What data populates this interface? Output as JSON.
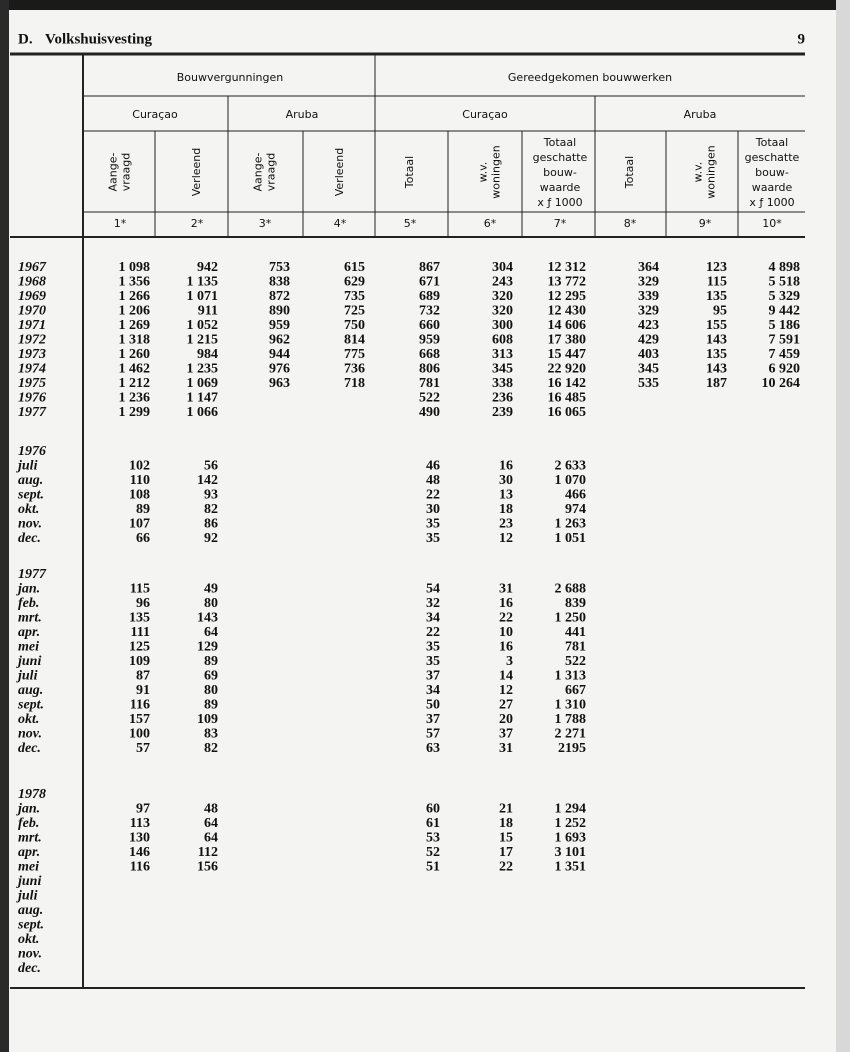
{
  "header": {
    "section": "D.",
    "title": "Volkshuisvesting",
    "page": "9"
  },
  "table": {
    "groups": [
      "Bouwvergunningen",
      "Gereedgekomen bouwwerken"
    ],
    "subgroups": [
      "Curaçao",
      "Aruba",
      "Curaçao",
      "Aruba"
    ],
    "columns": [
      [
        "Aange-",
        "vraagd"
      ],
      [
        "Verleend"
      ],
      [
        "Aange-",
        "vraagd"
      ],
      [
        "Verleend"
      ],
      [
        "Totaal"
      ],
      [
        "w.v.",
        "woningen"
      ],
      [
        "Totaal",
        "geschatte",
        "bouw-",
        "waarde",
        "x ƒ 1000"
      ],
      [
        "Totaal"
      ],
      [
        "w.v.",
        "woningen"
      ],
      [
        "Totaal",
        "geschatte",
        "bouw-",
        "waarde",
        "x ƒ 1000"
      ]
    ],
    "column_numbers": [
      "1*",
      "2*",
      "3*",
      "4*",
      "5*",
      "6*",
      "7*",
      "8*",
      "9*",
      "10*"
    ],
    "sections": [
      {
        "rows": [
          {
            "label": "1967",
            "cells": [
              "1 098",
              "942",
              "753",
              "615",
              "867",
              "304",
              "12 312",
              "364",
              "123",
              "4 898"
            ]
          },
          {
            "label": "1968",
            "cells": [
              "1 356",
              "1 135",
              "838",
              "629",
              "671",
              "243",
              "13 772",
              "329",
              "115",
              "5 518"
            ]
          },
          {
            "label": "1969",
            "cells": [
              "1 266",
              "1 071",
              "872",
              "735",
              "689",
              "320",
              "12 295",
              "339",
              "135",
              "5 329"
            ]
          },
          {
            "label": "1970",
            "cells": [
              "1 206",
              "911",
              "890",
              "725",
              "732",
              "320",
              "12 430",
              "329",
              "95",
              "9 442"
            ]
          },
          {
            "label": "1971",
            "cells": [
              "1 269",
              "1 052",
              "959",
              "750",
              "660",
              "300",
              "14 606",
              "423",
              "155",
              "5 186"
            ]
          },
          {
            "label": "1972",
            "cells": [
              "1 318",
              "1 215",
              "962",
              "814",
              "959",
              "608",
              "17 380",
              "429",
              "143",
              "7 591"
            ]
          },
          {
            "label": "1973",
            "cells": [
              "1 260",
              "984",
              "944",
              "775",
              "668",
              "313",
              "15 447",
              "403",
              "135",
              "7 459"
            ]
          },
          {
            "label": "1974",
            "cells": [
              "1 462",
              "1 235",
              "976",
              "736",
              "806",
              "345",
              "22 920",
              "345",
              "143",
              "6 920"
            ]
          },
          {
            "label": "1975",
            "cells": [
              "1 212",
              "1 069",
              "963",
              "718",
              "781",
              "338",
              "16 142",
              "535",
              "187",
              "10 264"
            ]
          },
          {
            "label": "1976",
            "cells": [
              "1 236",
              "1 147",
              null,
              null,
              "522",
              "236",
              "16 485",
              null,
              null,
              null
            ]
          },
          {
            "label": "1977",
            "cells": [
              "1 299",
              "1 066",
              null,
              null,
              "490",
              "239",
              "16 065",
              null,
              null,
              null
            ]
          }
        ]
      },
      {
        "label": "1976",
        "rows": [
          {
            "label": "juli",
            "cells": [
              "102",
              "56",
              null,
              null,
              "46",
              "16",
              "2 633",
              null,
              null,
              null
            ]
          },
          {
            "label": "aug.",
            "cells": [
              "110",
              "142",
              null,
              null,
              "48",
              "30",
              "1 070",
              null,
              null,
              null
            ]
          },
          {
            "label": "sept.",
            "cells": [
              "108",
              "93",
              null,
              null,
              "22",
              "13",
              "466",
              null,
              null,
              null
            ]
          },
          {
            "label": "okt.",
            "cells": [
              "89",
              "82",
              null,
              null,
              "30",
              "18",
              "974",
              null,
              null,
              null
            ]
          },
          {
            "label": "nov.",
            "cells": [
              "107",
              "86",
              null,
              null,
              "35",
              "23",
              "1 263",
              null,
              null,
              null
            ]
          },
          {
            "label": "dec.",
            "cells": [
              "66",
              "92",
              null,
              null,
              "35",
              "12",
              "1 051",
              null,
              null,
              null
            ]
          }
        ]
      },
      {
        "label": "1977",
        "rows": [
          {
            "label": "jan.",
            "cells": [
              "115",
              "49",
              null,
              null,
              "54",
              "31",
              "2 688",
              null,
              null,
              null
            ]
          },
          {
            "label": "feb.",
            "cells": [
              "96",
              "80",
              null,
              null,
              "32",
              "16",
              "839",
              null,
              null,
              null
            ]
          },
          {
            "label": "mrt.",
            "cells": [
              "135",
              "143",
              null,
              null,
              "34",
              "22",
              "1 250",
              null,
              null,
              null
            ]
          },
          {
            "label": "apr.",
            "cells": [
              "111",
              "64",
              null,
              null,
              "22",
              "10",
              "441",
              null,
              null,
              null
            ]
          },
          {
            "label": "mei",
            "cells": [
              "125",
              "129",
              null,
              null,
              "35",
              "16",
              "781",
              null,
              null,
              null
            ]
          },
          {
            "label": "juni",
            "cells": [
              "109",
              "89",
              null,
              null,
              "35",
              "3",
              "522",
              null,
              null,
              null
            ]
          },
          {
            "label": "juli",
            "cells": [
              "87",
              "69",
              null,
              null,
              "37",
              "14",
              "1 313",
              null,
              null,
              null
            ]
          },
          {
            "label": "aug.",
            "cells": [
              "91",
              "80",
              null,
              null,
              "34",
              "12",
              "667",
              null,
              null,
              null
            ]
          },
          {
            "label": "sept.",
            "cells": [
              "116",
              "89",
              null,
              null,
              "50",
              "27",
              "1 310",
              null,
              null,
              null
            ]
          },
          {
            "label": "okt.",
            "cells": [
              "157",
              "109",
              null,
              null,
              "37",
              "20",
              "1 788",
              null,
              null,
              null
            ]
          },
          {
            "label": "nov.",
            "cells": [
              "100",
              "83",
              null,
              null,
              "57",
              "37",
              "2 271",
              null,
              null,
              null
            ]
          },
          {
            "label": "dec.",
            "cells": [
              "57",
              "82",
              null,
              null,
              "63",
              "31",
              "2195",
              null,
              null,
              null
            ]
          }
        ]
      },
      {
        "label": "1978",
        "rows": [
          {
            "label": "jan.",
            "cells": [
              "97",
              "48",
              null,
              null,
              "60",
              "21",
              "1 294",
              null,
              null,
              null
            ]
          },
          {
            "label": "feb.",
            "cells": [
              "113",
              "64",
              null,
              null,
              "61",
              "18",
              "1 252",
              null,
              null,
              null
            ]
          },
          {
            "label": "mrt.",
            "cells": [
              "130",
              "64",
              null,
              null,
              "53",
              "15",
              "1 693",
              null,
              null,
              null
            ]
          },
          {
            "label": "apr.",
            "cells": [
              "146",
              "112",
              null,
              null,
              "52",
              "17",
              "3 101",
              null,
              null,
              null
            ]
          },
          {
            "label": "mei",
            "cells": [
              "116",
              "156",
              null,
              null,
              "51",
              "22",
              "1 351",
              null,
              null,
              null
            ]
          },
          {
            "label": "juni"
          },
          {
            "label": "juli"
          },
          {
            "label": "aug."
          },
          {
            "label": "sept."
          },
          {
            "label": "okt."
          },
          {
            "label": "nov."
          },
          {
            "label": "dec."
          }
        ]
      }
    ]
  }
}
